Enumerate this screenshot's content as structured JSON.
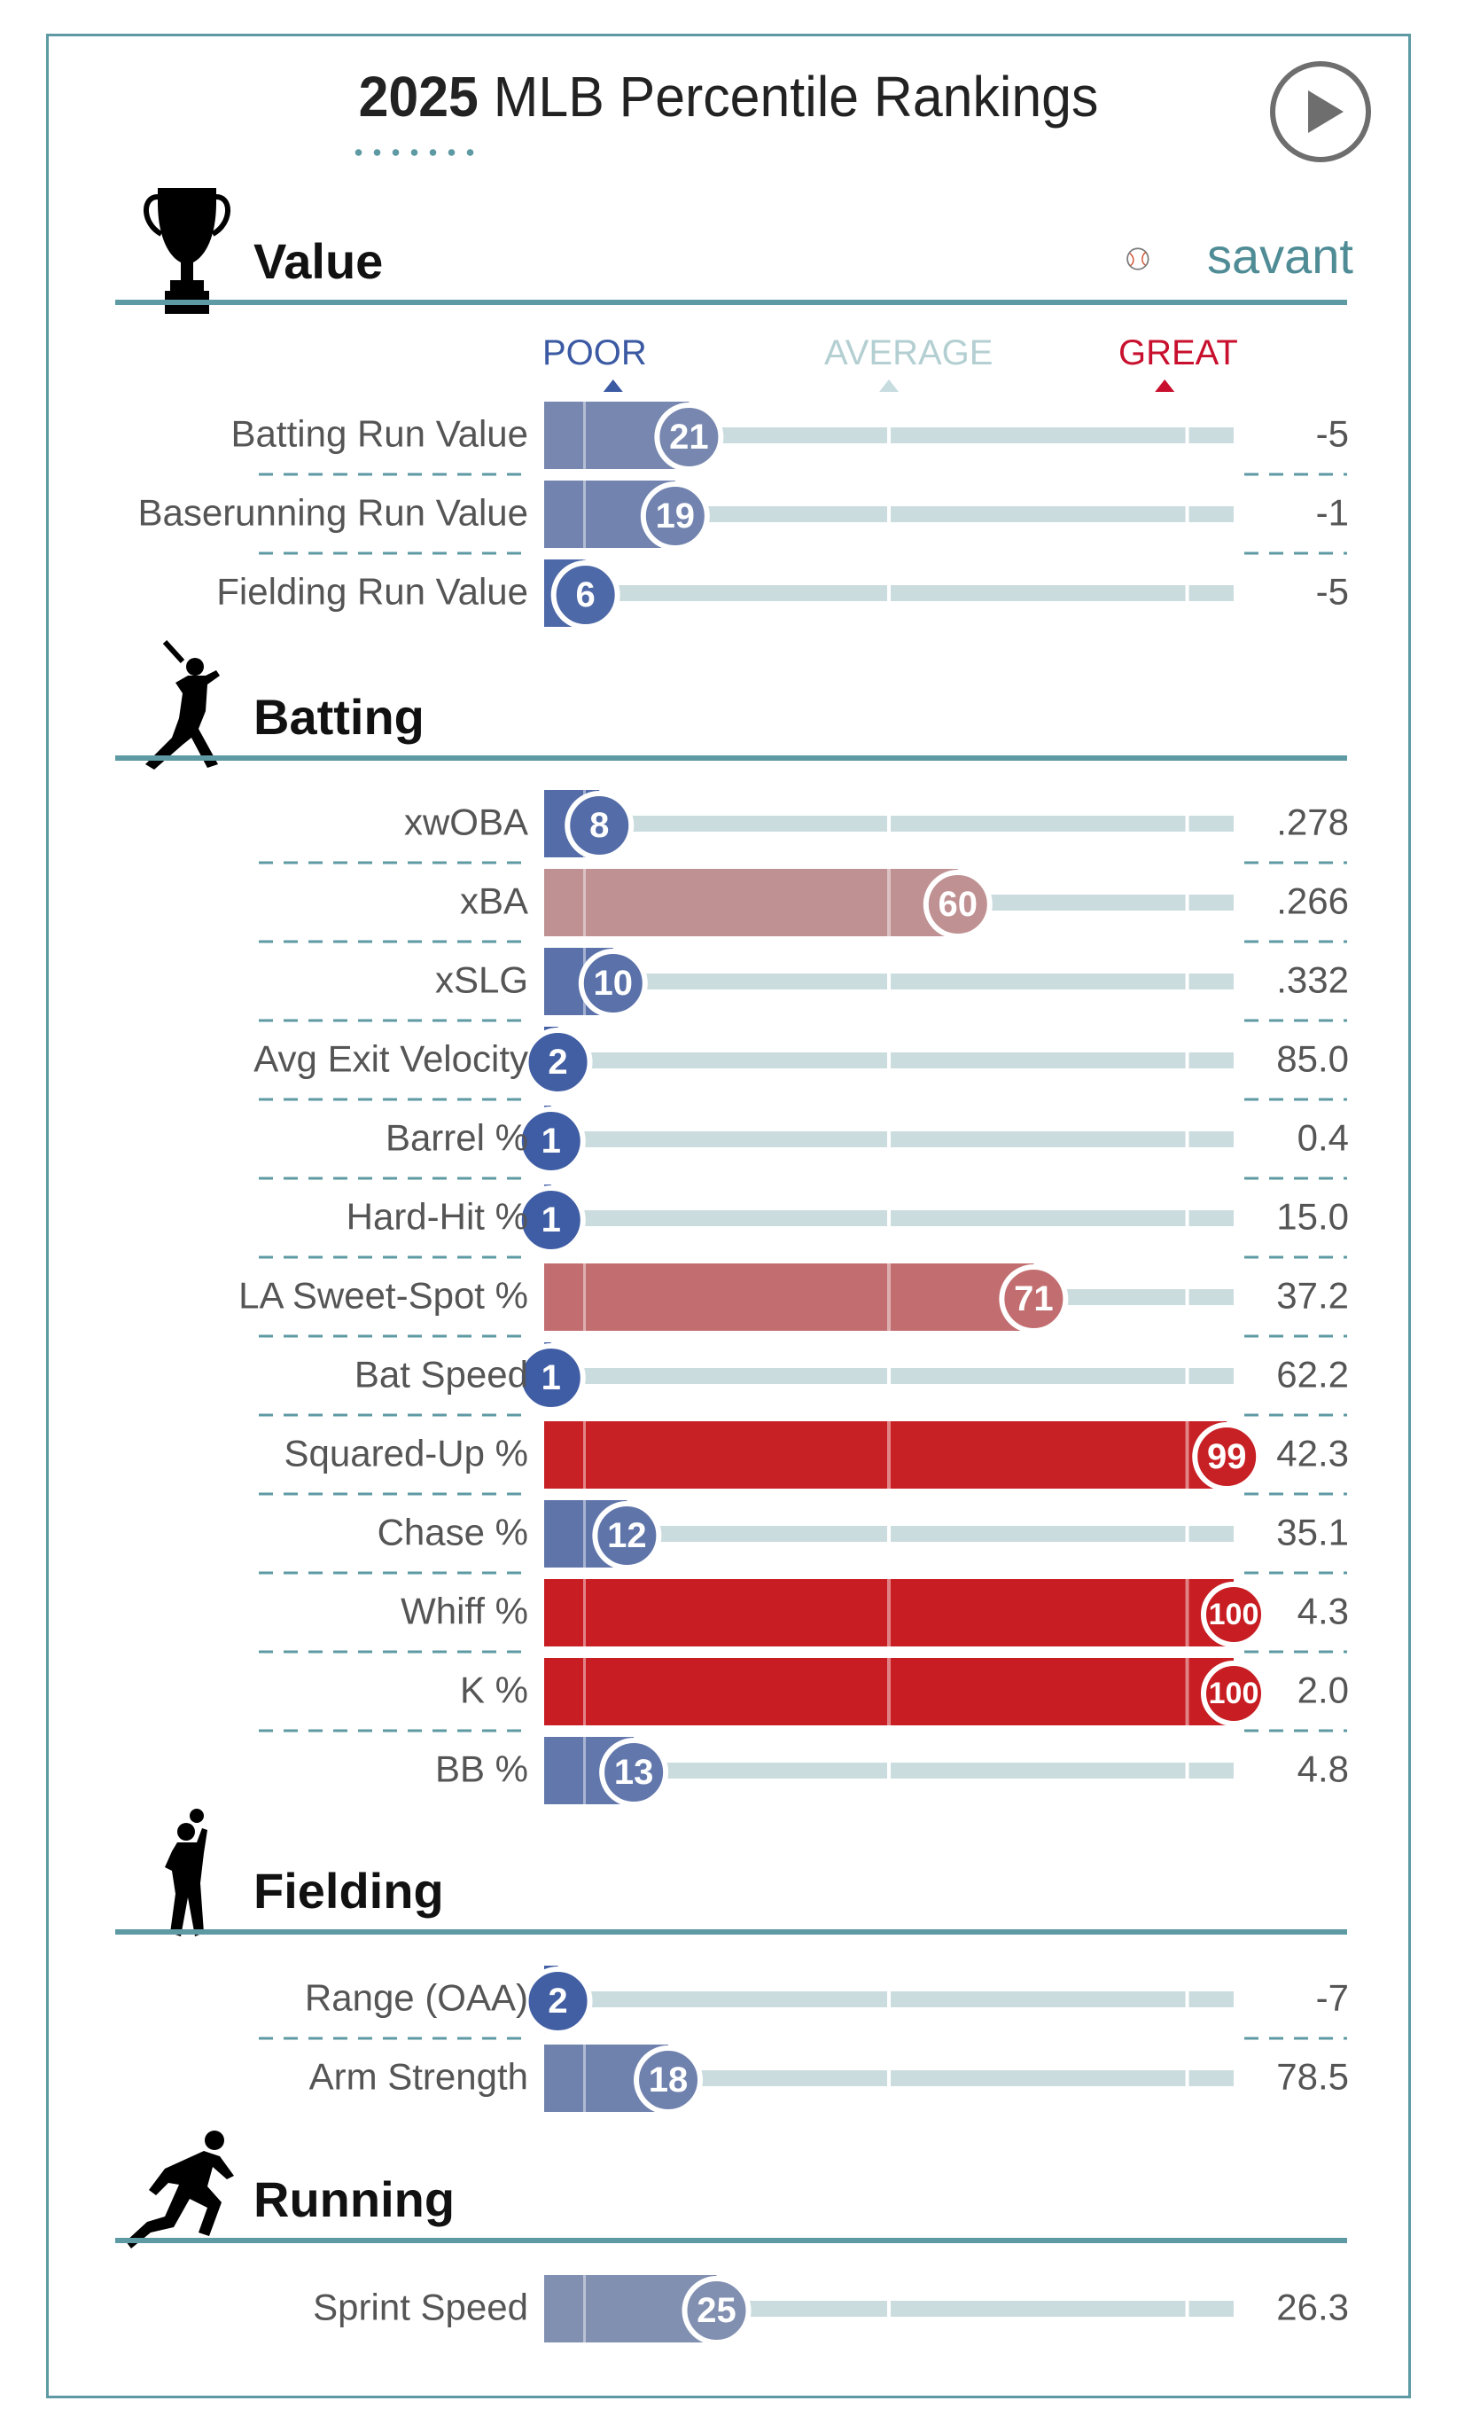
{
  "title": {
    "year": "2025",
    "rest": "MLB Percentile Rankings"
  },
  "brand": "savant",
  "scale": {
    "poor": "POOR",
    "average": "AVERAGE",
    "great": "GREAT"
  },
  "colors": {
    "border": "#5e9aa3",
    "poor": "#3b5aa3",
    "average": "#bdbdbd",
    "great": "#c8102e",
    "track": "#cbdcde"
  },
  "icons": {
    "play": "play-button-icon",
    "value": "trophy-icon",
    "batting": "batter-icon",
    "fielding": "fielder-icon",
    "running": "runner-icon",
    "brand": "baseball-icon"
  },
  "categories": [
    {
      "name": "Value",
      "icon": "trophy-icon"
    },
    {
      "name": "Batting",
      "icon": "batter-icon"
    },
    {
      "name": "Fielding",
      "icon": "fielder-icon"
    },
    {
      "name": "Running",
      "icon": "runner-icon"
    }
  ],
  "chart_data": {
    "type": "bar",
    "title": "2025 MLB Percentile Rankings",
    "xlim": [
      0,
      100
    ],
    "groups": [
      {
        "name": "Value",
        "metrics": [
          {
            "label": "Batting Run Value",
            "percentile": 21,
            "value": "-5"
          },
          {
            "label": "Baserunning Run Value",
            "percentile": 19,
            "value": "-1"
          },
          {
            "label": "Fielding Run Value",
            "percentile": 6,
            "value": "-5"
          }
        ]
      },
      {
        "name": "Batting",
        "metrics": [
          {
            "label": "xwOBA",
            "percentile": 8,
            "value": ".278"
          },
          {
            "label": "xBA",
            "percentile": 60,
            "value": ".266"
          },
          {
            "label": "xSLG",
            "percentile": 10,
            "value": ".332"
          },
          {
            "label": "Avg Exit Velocity",
            "percentile": 2,
            "value": "85.0"
          },
          {
            "label": "Barrel %",
            "percentile": 1,
            "value": "0.4"
          },
          {
            "label": "Hard-Hit %",
            "percentile": 1,
            "value": "15.0"
          },
          {
            "label": "LA Sweet-Spot %",
            "percentile": 71,
            "value": "37.2"
          },
          {
            "label": "Bat Speed",
            "percentile": 1,
            "value": "62.2"
          },
          {
            "label": "Squared-Up %",
            "percentile": 99,
            "value": "42.3"
          },
          {
            "label": "Chase %",
            "percentile": 12,
            "value": "35.1"
          },
          {
            "label": "Whiff %",
            "percentile": 100,
            "value": "4.3"
          },
          {
            "label": "K %",
            "percentile": 100,
            "value": "2.0"
          },
          {
            "label": "BB %",
            "percentile": 13,
            "value": "4.8"
          }
        ]
      },
      {
        "name": "Fielding",
        "metrics": [
          {
            "label": "Range (OAA)",
            "percentile": 2,
            "value": "-7"
          },
          {
            "label": "Arm Strength",
            "percentile": 18,
            "value": "78.5"
          }
        ]
      },
      {
        "name": "Running",
        "metrics": [
          {
            "label": "Sprint Speed",
            "percentile": 25,
            "value": "26.3"
          }
        ]
      }
    ]
  }
}
